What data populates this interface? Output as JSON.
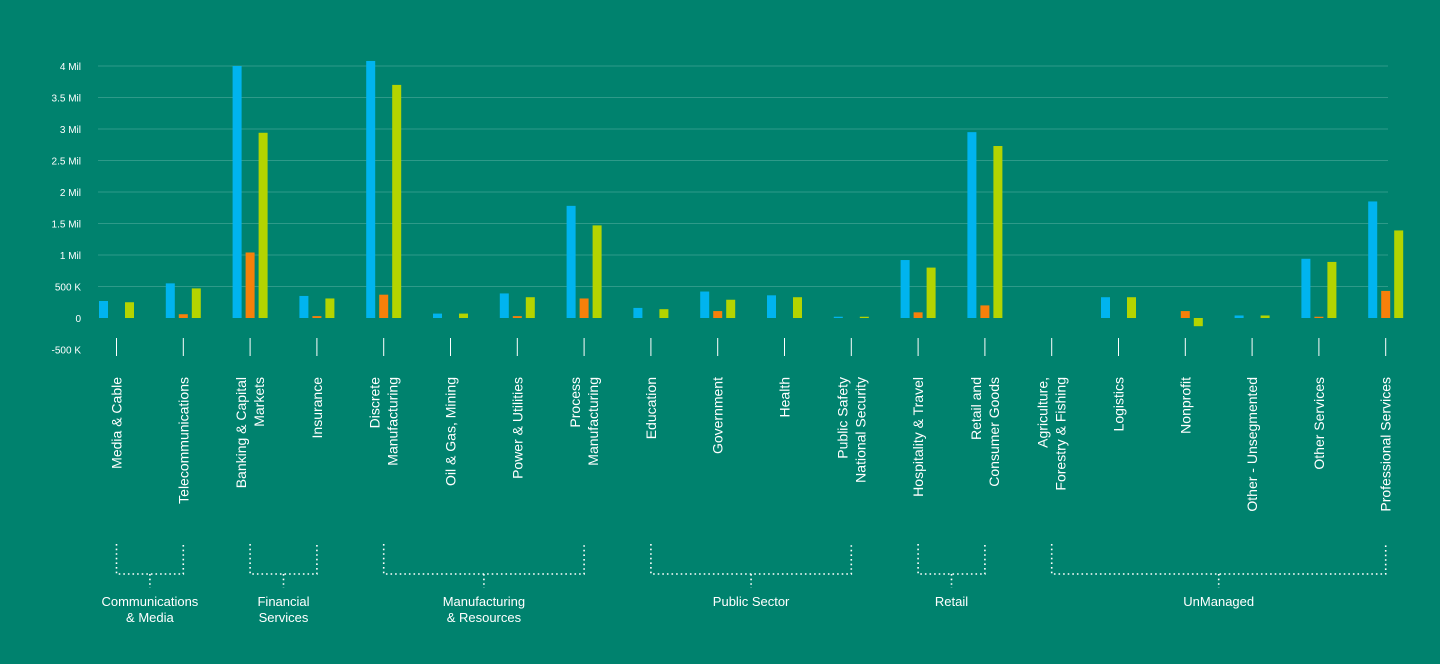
{
  "colors": {
    "background": "#00826E",
    "gridline": "#2E9A89",
    "axis_text": "#FFFFFF",
    "bracket": "#FFFFFF",
    "series": [
      "#00B4EF",
      "#F7800A",
      "#B4D400"
    ]
  },
  "chart_data": {
    "type": "bar",
    "title": "",
    "xlabel": "",
    "ylabel": "",
    "ylim": [
      -500000,
      4000000
    ],
    "yticks": [
      {
        "value": 4000000,
        "label": "4 Mil"
      },
      {
        "value": 3500000,
        "label": "3.5 Mil"
      },
      {
        "value": 3000000,
        "label": "3 Mil"
      },
      {
        "value": 2500000,
        "label": "2.5 Mil"
      },
      {
        "value": 2000000,
        "label": "2 Mil"
      },
      {
        "value": 1500000,
        "label": "1.5 Mil"
      },
      {
        "value": 1000000,
        "label": "1 Mil"
      },
      {
        "value": 500000,
        "label": "500 K"
      },
      {
        "value": 0,
        "label": "0"
      },
      {
        "value": -500000,
        "label": "-500 K"
      }
    ],
    "grid": true,
    "legend": "none",
    "categories": [
      [
        "Media & Cable"
      ],
      [
        "Telecommunications"
      ],
      [
        "Banking & Capital",
        "Markets"
      ],
      [
        "Insurance"
      ],
      [
        "Discrete",
        "Manufacturing"
      ],
      [
        "Oil & Gas, Mining"
      ],
      [
        "Power & Utilities"
      ],
      [
        "Process",
        "Manufacturing"
      ],
      [
        "Education"
      ],
      [
        "Government"
      ],
      [
        "Health"
      ],
      [
        "Public Safety",
        "National Security"
      ],
      [
        "Hospitality & Travel"
      ],
      [
        "Retail and",
        "Consumer Goods"
      ],
      [
        "Agriculture,",
        "Forestry & Fishing"
      ],
      [
        "Logistics"
      ],
      [
        "Nonprofit"
      ],
      [
        "Other - Unsegmented"
      ],
      [
        "Other Services"
      ],
      [
        "Professional Services"
      ]
    ],
    "series": [
      {
        "values": [
          270000,
          550000,
          4000000,
          350000,
          4080000,
          70000,
          390000,
          1780000,
          160000,
          420000,
          360000,
          20000,
          920000,
          2950000,
          0,
          330000,
          0,
          40000,
          940000,
          1850000
        ]
      },
      {
        "values": [
          0,
          60000,
          1040000,
          30000,
          370000,
          0,
          30000,
          310000,
          0,
          110000,
          0,
          0,
          90000,
          200000,
          0,
          0,
          110000,
          0,
          20000,
          430000
        ]
      },
      {
        "values": [
          250000,
          470000,
          2940000,
          310000,
          3700000,
          70000,
          330000,
          1470000,
          140000,
          290000,
          330000,
          20000,
          800000,
          2730000,
          0,
          330000,
          -130000,
          40000,
          890000,
          1390000
        ]
      }
    ],
    "groups": [
      {
        "label": [
          "Communications",
          "& Media"
        ],
        "start": 0,
        "end": 1
      },
      {
        "label": [
          "Financial",
          "Services"
        ],
        "start": 2,
        "end": 3
      },
      {
        "label": [
          "Manufacturing",
          "& Resources"
        ],
        "start": 4,
        "end": 7
      },
      {
        "label": [
          "Public Sector"
        ],
        "start": 8,
        "end": 11
      },
      {
        "label": [
          "Retail"
        ],
        "start": 12,
        "end": 13
      },
      {
        "label": [
          "UnManaged"
        ],
        "start": 14,
        "end": 19
      }
    ]
  }
}
